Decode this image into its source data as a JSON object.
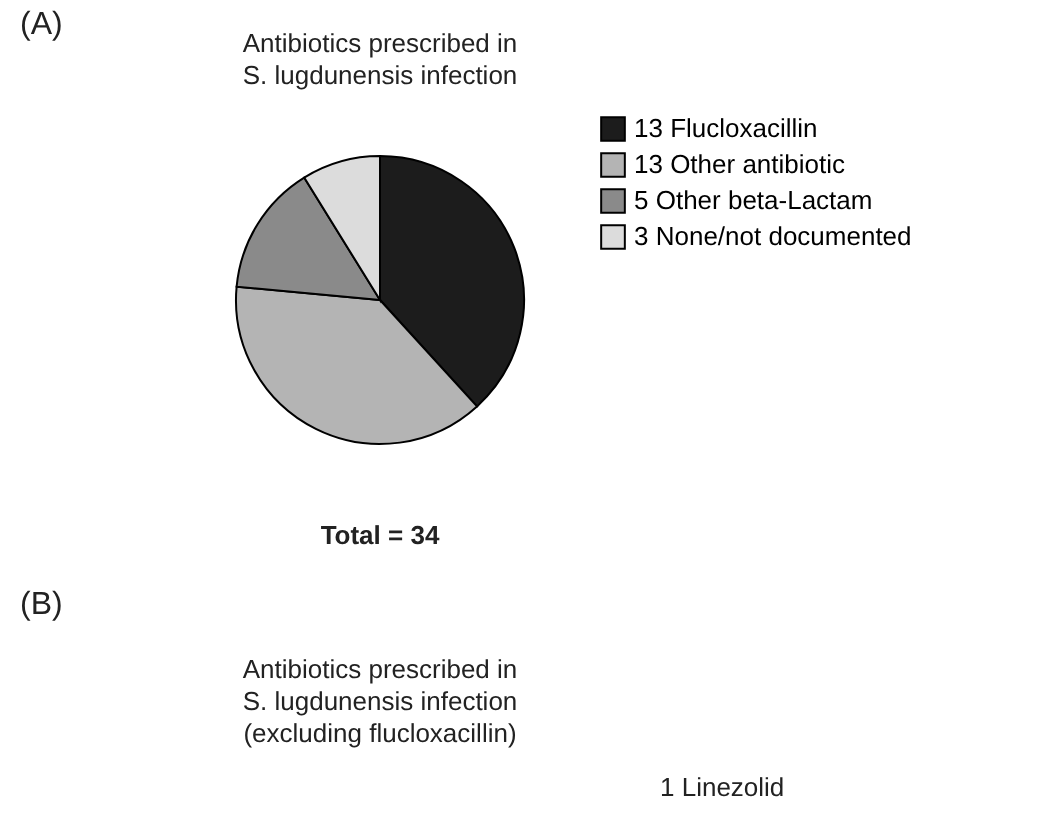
{
  "chart_data": [
    {
      "type": "pie",
      "title": "Antibiotics prescribed in\nS. lugdunensis infection",
      "categories": [
        "13 Flucloxacillin",
        "13 Other antibiotic",
        "5 Other beta-Lactam",
        "3 None/not documented"
      ],
      "values": [
        13,
        13,
        5,
        3
      ],
      "colors": [
        "#1c1c1c",
        "#b4b4b4",
        "#8a8a8a",
        "#dcdcdc"
      ],
      "legend": "top right",
      "annotations": [
        "(A)",
        "Total = 34"
      ]
    },
    {
      "type": "other",
      "title": "Antibiotics prescribed in\nS. lugdunensis infection\n(excluding flucloxacillin)",
      "annotations": [
        "(B)",
        "1 Linezolid"
      ]
    }
  ]
}
